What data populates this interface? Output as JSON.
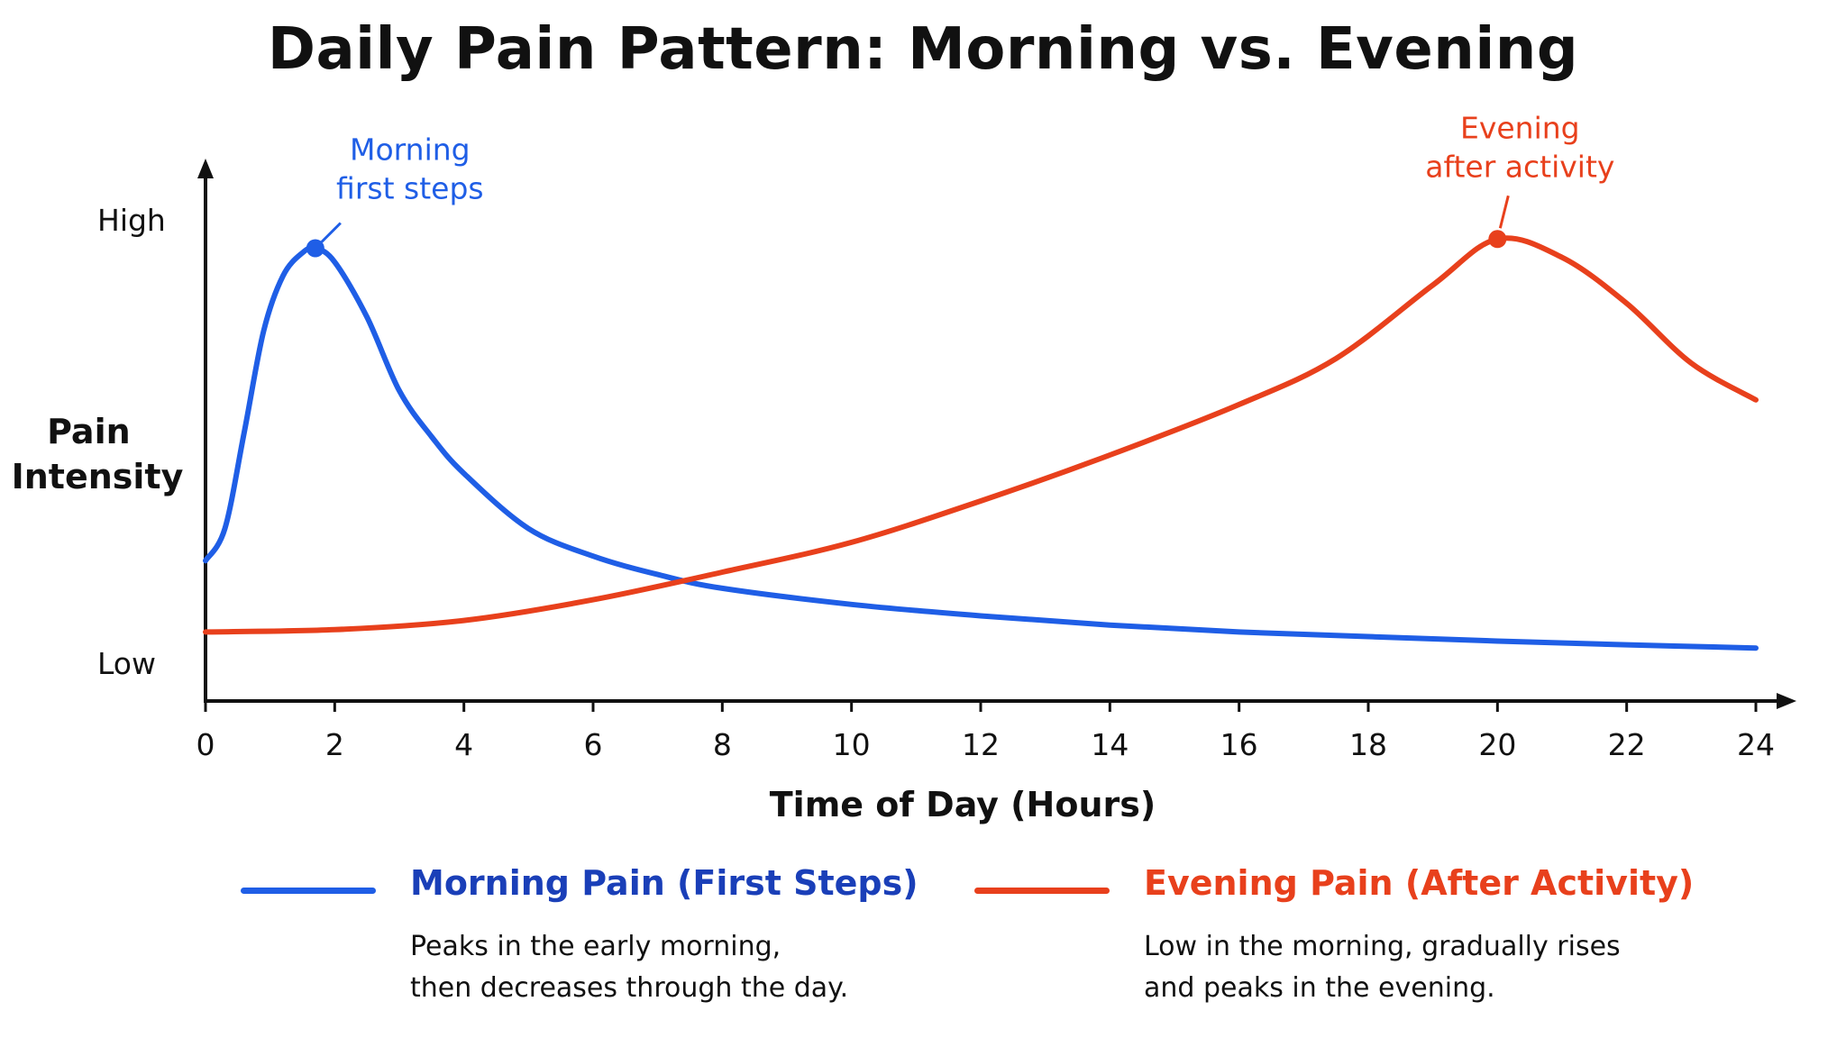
{
  "chart_data": {
    "type": "line",
    "title": "Daily Pain Pattern: Morning vs. Evening",
    "xlabel": "Time of Day (Hours)",
    "ylabel": "Pain Intensity",
    "y_level_labels": {
      "high": "High",
      "low": "Low"
    },
    "xlim": [
      0,
      24
    ],
    "ylim": [
      0,
      1
    ],
    "xticks": [
      0,
      2,
      4,
      6,
      8,
      10,
      12,
      14,
      16,
      18,
      20,
      22,
      24
    ],
    "grid": false,
    "legend_placement": "bottom",
    "series": [
      {
        "name": "Morning Pain (First Steps)",
        "description_lines": [
          "Peaks in the early morning,",
          "then decreases through the day."
        ],
        "color": "#1f5ee6",
        "x": [
          0,
          0.3,
          0.6,
          0.9,
          1.2,
          1.5,
          1.7,
          2.0,
          2.5,
          3.0,
          3.5,
          4.0,
          5.0,
          6.0,
          7.0,
          8.0,
          10.0,
          12.0,
          14.0,
          16.0,
          18.0,
          20.0,
          22.0,
          24.0
        ],
        "y": [
          0.27,
          0.34,
          0.55,
          0.77,
          0.89,
          0.94,
          0.95,
          0.92,
          0.8,
          0.64,
          0.54,
          0.46,
          0.34,
          0.28,
          0.24,
          0.21,
          0.175,
          0.15,
          0.13,
          0.115,
          0.105,
          0.095,
          0.087,
          0.08
        ],
        "annotation": {
          "lines": [
            "Morning",
            "first steps"
          ],
          "x": 1.7,
          "y": 0.95
        }
      },
      {
        "name": "Evening Pain (After Activity)",
        "description_lines": [
          "Low in the morning, gradually rises",
          "and peaks in the evening."
        ],
        "color": "#e8401c",
        "x": [
          0,
          2,
          4,
          6,
          8,
          10,
          12,
          14,
          16,
          17.5,
          19,
          20.0,
          21,
          22,
          23,
          24.0
        ],
        "y": [
          0.115,
          0.12,
          0.14,
          0.185,
          0.245,
          0.31,
          0.4,
          0.5,
          0.61,
          0.71,
          0.87,
          0.97,
          0.93,
          0.83,
          0.7,
          0.62
        ],
        "annotation": {
          "lines": [
            "Evening",
            "after activity"
          ],
          "x": 20,
          "y": 0.97
        }
      }
    ]
  }
}
